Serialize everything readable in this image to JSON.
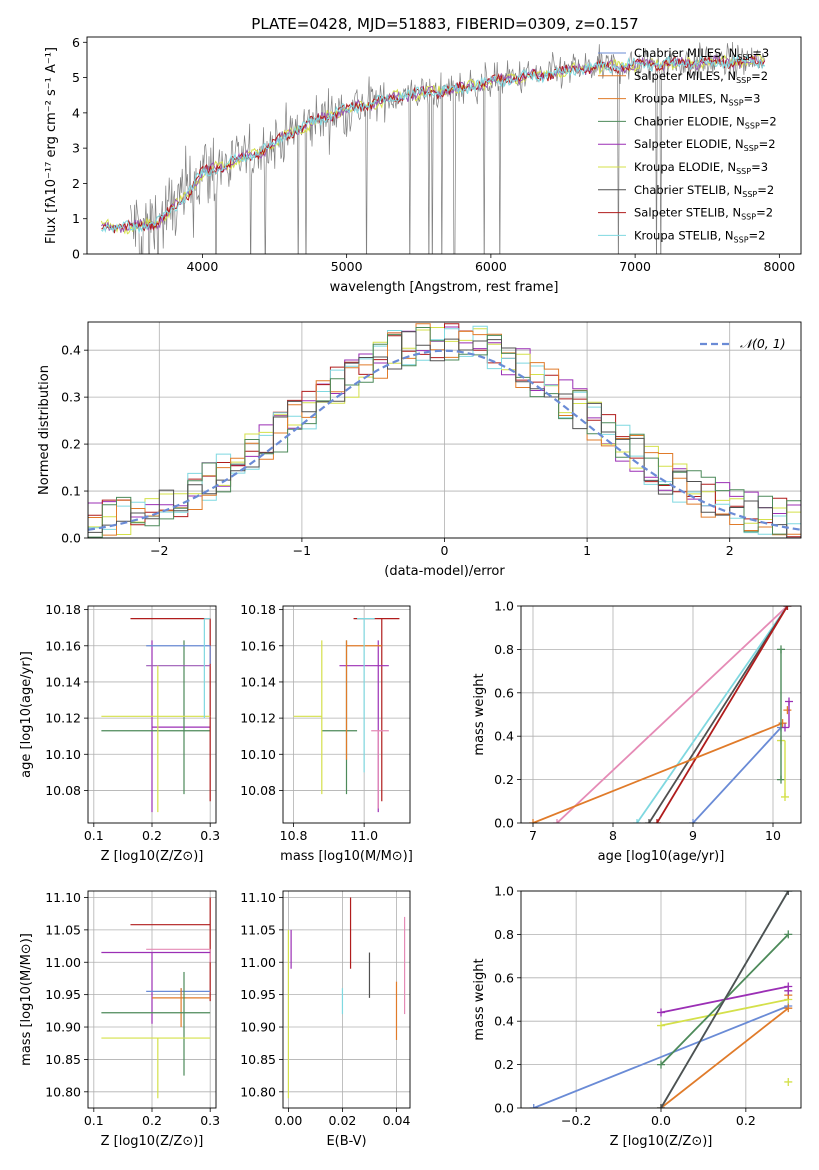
{
  "figure_title": "PLATE=0428, MJD=51883, FIBERID=0309, z=0.157",
  "colors": {
    "spectrum": "#808080",
    "models": [
      "#6a8bd6",
      "#9b59b6",
      "#e07b2a",
      "#4d8a5a",
      "#9b2fb5",
      "#d4e04a",
      "#505050",
      "#b01c1c",
      "#7fd8e0"
    ],
    "pink": "#e58bb6",
    "gaussian": "#6a8bd6",
    "grid": "#b0b0b0"
  },
  "chart_data": [
    {
      "id": "spectrum",
      "type": "line",
      "title": "PLATE=0428, MJD=51883, FIBERID=0309, z=0.157",
      "xlabel": "wavelength [Angstrom, rest frame]",
      "ylabel": "Flux [fλ10⁻¹⁷ erg cm⁻² s⁻¹ A⁻¹]",
      "xlim": [
        3200,
        8150
      ],
      "ylim": [
        0,
        6.15
      ],
      "xticks": [
        4000,
        5000,
        6000,
        7000,
        8000
      ],
      "yticks": [
        0,
        1,
        2,
        3,
        4,
        5,
        6
      ],
      "legend": [
        "Chabrier MILES, NSSP=3",
        "Salpeter MILES, NSSP=2",
        "Kroupa MILES, NSSP=3",
        "Chabrier ELODIE, NSSP=2",
        "Salpeter ELODIE, NSSP=2",
        "Kroupa ELODIE, NSSP=3",
        "Chabrier STELIB, NSSP=2",
        "Salpeter STELIB, NSSP=2",
        "Kroupa STELIB, NSSP=2"
      ],
      "legend_position": "upper right",
      "model_continuum": {
        "x": [
          3300,
          3500,
          3700,
          3900,
          4000,
          4200,
          4400,
          4600,
          4800,
          5000,
          5200,
          5400,
          5600,
          5800,
          6000,
          6200,
          6400,
          6600,
          6800,
          7000,
          7200,
          7400,
          7600,
          7800,
          7900
        ],
        "y": [
          0.8,
          0.75,
          0.9,
          1.7,
          2.3,
          2.6,
          2.9,
          3.4,
          3.8,
          4.1,
          4.3,
          4.5,
          4.6,
          4.7,
          4.9,
          5.0,
          5.1,
          5.25,
          5.3,
          5.35,
          5.4,
          5.42,
          5.45,
          5.45,
          5.45
        ]
      }
    },
    {
      "id": "residuals",
      "type": "line",
      "xlabel": "(data-model)/error",
      "ylabel": "Normed distribution",
      "xlim": [
        -2.5,
        2.5
      ],
      "ylim": [
        0,
        0.46
      ],
      "xticks": [
        -2,
        -1,
        0,
        1,
        2
      ],
      "yticks": [
        0.0,
        0.1,
        0.2,
        0.3,
        0.4
      ],
      "legend": [
        "𝒩(0, 1)"
      ],
      "legend_position": "upper right",
      "gaussian": {
        "mean": 0,
        "sigma": 1
      }
    },
    {
      "id": "age-vs-Z",
      "type": "scatter",
      "xlabel": "Z [log10(Z/Z⊙)]",
      "ylabel": "age  [log10(age/yr)]",
      "xlim": [
        0.09,
        0.31
      ],
      "ylim": [
        10.062,
        10.182
      ],
      "xticks": [
        0.1,
        0.2,
        0.3
      ],
      "yticks": [
        10.08,
        10.1,
        10.12,
        10.14,
        10.16,
        10.18
      ],
      "points": [
        {
          "x": 0.2,
          "y": 10.115,
          "xerr": [
            0.2,
            0.3
          ],
          "yerr": [
            10.068,
            10.163
          ],
          "series": 4
        },
        {
          "x": 0.255,
          "y": 10.113,
          "xerr": [
            0.113,
            0.3
          ],
          "yerr": [
            10.078,
            10.163
          ],
          "series": 3
        },
        {
          "x": 0.3,
          "y": 10.175,
          "xerr": [
            0.163,
            0.3
          ],
          "yerr": [
            10.074,
            10.175
          ],
          "series": 7
        },
        {
          "x": 0.3,
          "y": 10.149,
          "xerr": [
            0.19,
            0.3
          ],
          "yerr": [
            10.149,
            10.149
          ],
          "series": 1
        },
        {
          "x": 0.21,
          "y": 10.121,
          "xerr": [
            0.113,
            0.3
          ],
          "yerr": [
            10.068,
            10.149
          ],
          "series": 5
        },
        {
          "x": 0.3,
          "y": 10.16,
          "xerr": [
            0.19,
            0.3
          ],
          "yerr": [
            10.15,
            10.16
          ],
          "series": 0
        },
        {
          "x": 0.29,
          "y": 10.175,
          "xerr": [
            0.29,
            0.3
          ],
          "yerr": [
            10.12,
            10.175
          ],
          "series": 8
        }
      ]
    },
    {
      "id": "age-vs-mass",
      "type": "scatter",
      "xlabel": "mass [log10(M/M⊙)]",
      "ylabel": "",
      "xlim": [
        10.77,
        11.13
      ],
      "ylim": [
        10.062,
        10.182
      ],
      "xticks": [
        10.8,
        11.0
      ],
      "yticks": [
        10.08,
        10.1,
        10.12,
        10.14,
        10.16,
        10.18
      ],
      "points": [
        {
          "x": 10.95,
          "y": 10.113,
          "xerr": [
            10.88,
            10.98
          ],
          "yerr": [
            10.078,
            10.163
          ],
          "series": 3
        },
        {
          "x": 11.05,
          "y": 10.175,
          "xerr": [
            10.97,
            11.1
          ],
          "yerr": [
            10.074,
            10.175
          ],
          "series": 7
        },
        {
          "x": 11.04,
          "y": 10.149,
          "xerr": [
            10.93,
            11.07
          ],
          "yerr": [
            10.068,
            10.163
          ],
          "series": 4
        },
        {
          "x": 10.88,
          "y": 10.121,
          "xerr": [
            10.8,
            10.88
          ],
          "yerr": [
            10.078,
            10.163
          ],
          "series": 5
        },
        {
          "x": 10.95,
          "y": 10.16,
          "xerr": [
            10.95,
            11.05
          ],
          "yerr": [
            10.097,
            10.163
          ],
          "series": 2
        },
        {
          "x": 11.0,
          "y": 10.175,
          "xerr": [
            10.98,
            11.03
          ],
          "yerr": [
            10.09,
            10.175
          ],
          "series": 8
        },
        {
          "x": 11.04,
          "y": 10.113,
          "xerr": [
            11.02,
            11.07
          ],
          "yerr": [
            10.07,
            10.113
          ],
          "series": 9
        }
      ]
    },
    {
      "id": "massweight-vs-age",
      "type": "line",
      "xlabel": "age  [log10(age/yr)]",
      "ylabel": "mass weight",
      "xlim": [
        6.85,
        10.35
      ],
      "ylim": [
        0,
        1
      ],
      "xticks": [
        7,
        8,
        9,
        10
      ],
      "yticks": [
        0.0,
        0.2,
        0.4,
        0.6,
        0.8,
        1.0
      ],
      "segments": [
        {
          "x": [
            7.3,
            10.18
          ],
          "y": [
            0,
            1.0
          ],
          "series": 9
        },
        {
          "x": [
            8.3,
            10.18
          ],
          "y": [
            0,
            1.0
          ],
          "series": 8
        },
        {
          "x": [
            8.45,
            10.18
          ],
          "y": [
            0,
            1.0
          ],
          "series": 6
        },
        {
          "x": [
            8.55,
            10.18
          ],
          "y": [
            0,
            1.0
          ],
          "series": 7
        },
        {
          "x": [
            7.0,
            10.12
          ],
          "y": [
            0,
            0.46
          ],
          "series": 2
        },
        {
          "x": [
            9.0,
            10.1
          ],
          "y": [
            0,
            0.44
          ],
          "series": 0
        }
      ],
      "markers": [
        {
          "x": 10.1,
          "y": 0.8,
          "series": 3
        },
        {
          "x": 10.1,
          "y": 0.2,
          "series": 3
        },
        {
          "x": 10.2,
          "y": 0.56,
          "series": 4
        },
        {
          "x": 10.15,
          "y": 0.44,
          "series": 4
        },
        {
          "x": 10.15,
          "y": 0.12,
          "series": 5
        },
        {
          "x": 10.1,
          "y": 0.38,
          "series": 5
        },
        {
          "x": 10.18,
          "y": 0.52,
          "series": 2
        }
      ]
    },
    {
      "id": "mass-vs-Z",
      "type": "scatter",
      "xlabel": "Z [log10(Z/Z⊙)]",
      "ylabel": "mass [log10(M/M⊙)]",
      "xlim": [
        0.09,
        0.31
      ],
      "ylim": [
        10.775,
        11.11
      ],
      "xticks": [
        0.1,
        0.2,
        0.3
      ],
      "yticks": [
        10.8,
        10.85,
        10.9,
        10.95,
        11.0,
        11.05,
        11.1
      ],
      "points": [
        {
          "x": 0.3,
          "y": 11.058,
          "xerr": [
            0.163,
            0.3
          ],
          "yerr": [
            10.94,
            11.1
          ],
          "series": 7
        },
        {
          "x": 0.3,
          "y": 11.02,
          "xerr": [
            0.19,
            0.3
          ],
          "yerr": [
            11.0,
            11.02
          ],
          "series": 9
        },
        {
          "x": 0.2,
          "y": 11.015,
          "xerr": [
            0.113,
            0.3
          ],
          "yerr": [
            10.905,
            11.015
          ],
          "series": 4
        },
        {
          "x": 0.25,
          "y": 10.955,
          "xerr": [
            0.19,
            0.3
          ],
          "yerr": [
            10.95,
            10.96
          ],
          "series": 0
        },
        {
          "x": 0.25,
          "y": 10.945,
          "xerr": [
            0.2,
            0.3
          ],
          "yerr": [
            10.9,
            10.96
          ],
          "series": 2
        },
        {
          "x": 0.255,
          "y": 10.922,
          "xerr": [
            0.113,
            0.3
          ],
          "yerr": [
            10.825,
            10.985
          ],
          "series": 3
        },
        {
          "x": 0.21,
          "y": 10.883,
          "xerr": [
            0.113,
            0.3
          ],
          "yerr": [
            10.79,
            10.883
          ],
          "series": 5
        }
      ]
    },
    {
      "id": "mass-vs-EBV",
      "type": "scatter",
      "xlabel": "E(B-V)",
      "ylabel": "",
      "xlim": [
        -0.002,
        0.045
      ],
      "ylim": [
        10.775,
        11.11
      ],
      "xticks": [
        0.0,
        0.02,
        0.04
      ],
      "yticks": [
        10.8,
        10.85,
        10.9,
        10.95,
        11.0,
        11.05,
        11.1
      ],
      "points": [
        {
          "x": 0.0,
          "y": 10.9,
          "yerr": [
            10.79,
            11.05
          ],
          "series": 5
        },
        {
          "x": 0.001,
          "y": 11.0,
          "yerr": [
            10.99,
            11.05
          ],
          "series": 4
        },
        {
          "x": 0.02,
          "y": 10.96,
          "yerr": [
            10.92,
            10.96
          ],
          "series": 8
        },
        {
          "x": 0.023,
          "y": 11.04,
          "yerr": [
            10.99,
            11.1
          ],
          "series": 7
        },
        {
          "x": 0.03,
          "y": 10.98,
          "yerr": [
            10.945,
            11.015
          ],
          "series": 6
        },
        {
          "x": 0.04,
          "y": 10.92,
          "yerr": [
            10.88,
            10.97
          ],
          "series": 2
        },
        {
          "x": 0.043,
          "y": 11.0,
          "yerr": [
            10.92,
            11.07
          ],
          "series": 9
        }
      ]
    },
    {
      "id": "massweight-vs-Z",
      "type": "line",
      "xlabel": "Z [log10(Z/Z⊙)]",
      "ylabel": "mass weight",
      "xlim": [
        -0.33,
        0.33
      ],
      "ylim": [
        0,
        1
      ],
      "xticks": [
        -0.2,
        0.0,
        0.2
      ],
      "yticks": [
        0.0,
        0.2,
        0.4,
        0.6,
        0.8,
        1.0
      ],
      "segments": [
        {
          "x": [
            -0.3,
            0.3
          ],
          "y": [
            0,
            0.47
          ],
          "series": 0
        },
        {
          "x": [
            0.0,
            0.3
          ],
          "y": [
            0.44,
            0.56
          ],
          "series": 4
        },
        {
          "x": [
            0.0,
            0.3
          ],
          "y": [
            0.38,
            0.5
          ],
          "series": 5
        },
        {
          "x": [
            0.0,
            0.3
          ],
          "y": [
            0.2,
            0.8
          ],
          "series": 3
        },
        {
          "x": [
            0.0,
            0.3
          ],
          "y": [
            0,
            0.46
          ],
          "series": 2
        },
        {
          "x": [
            0.0,
            0.3
          ],
          "y": [
            0,
            1.0
          ],
          "series": 8
        },
        {
          "x": [
            0.0,
            0.3
          ],
          "y": [
            0,
            1.0
          ],
          "series": 6
        }
      ],
      "markers": [
        {
          "x": 0.3,
          "y": 0.12,
          "series": 5
        },
        {
          "x": 0.3,
          "y": 0.52,
          "series": 2
        },
        {
          "x": 0.3,
          "y": 0.54,
          "series": 4
        }
      ]
    }
  ]
}
